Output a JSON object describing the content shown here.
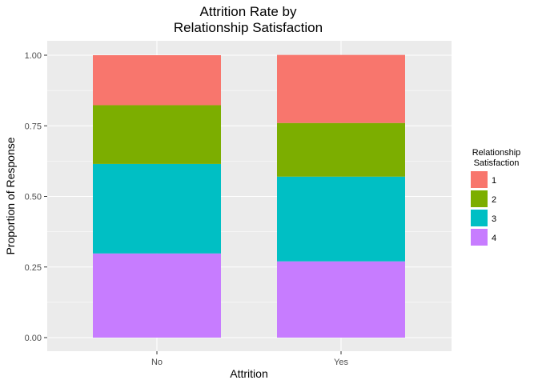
{
  "chart_data": {
    "type": "bar",
    "stacked": true,
    "title_lines": [
      "Attrition Rate by",
      "Relationship Satisfaction"
    ],
    "xlabel": "Attrition",
    "ylabel": "Proportion of Response",
    "categories": [
      "No",
      "Yes"
    ],
    "ylim": [
      0,
      1
    ],
    "yticks": [
      "0.00",
      "0.25",
      "0.50",
      "0.75",
      "1.00"
    ],
    "grid": true,
    "legend": {
      "title_lines": [
        "Relationship",
        "Satisfaction"
      ],
      "placement": "right"
    },
    "series": [
      {
        "name": "1",
        "color": "#F8766D",
        "values": [
          0.177,
          0.241
        ]
      },
      {
        "name": "2",
        "color": "#7CAE00",
        "values": [
          0.208,
          0.19
        ]
      },
      {
        "name": "3",
        "color": "#00BFC4",
        "values": [
          0.317,
          0.3
        ]
      },
      {
        "name": "4",
        "color": "#C77CFF",
        "values": [
          0.298,
          0.27
        ]
      }
    ],
    "colors": {
      "panel_background": "#EBEBEB",
      "gridline": "#FFFFFF"
    }
  }
}
